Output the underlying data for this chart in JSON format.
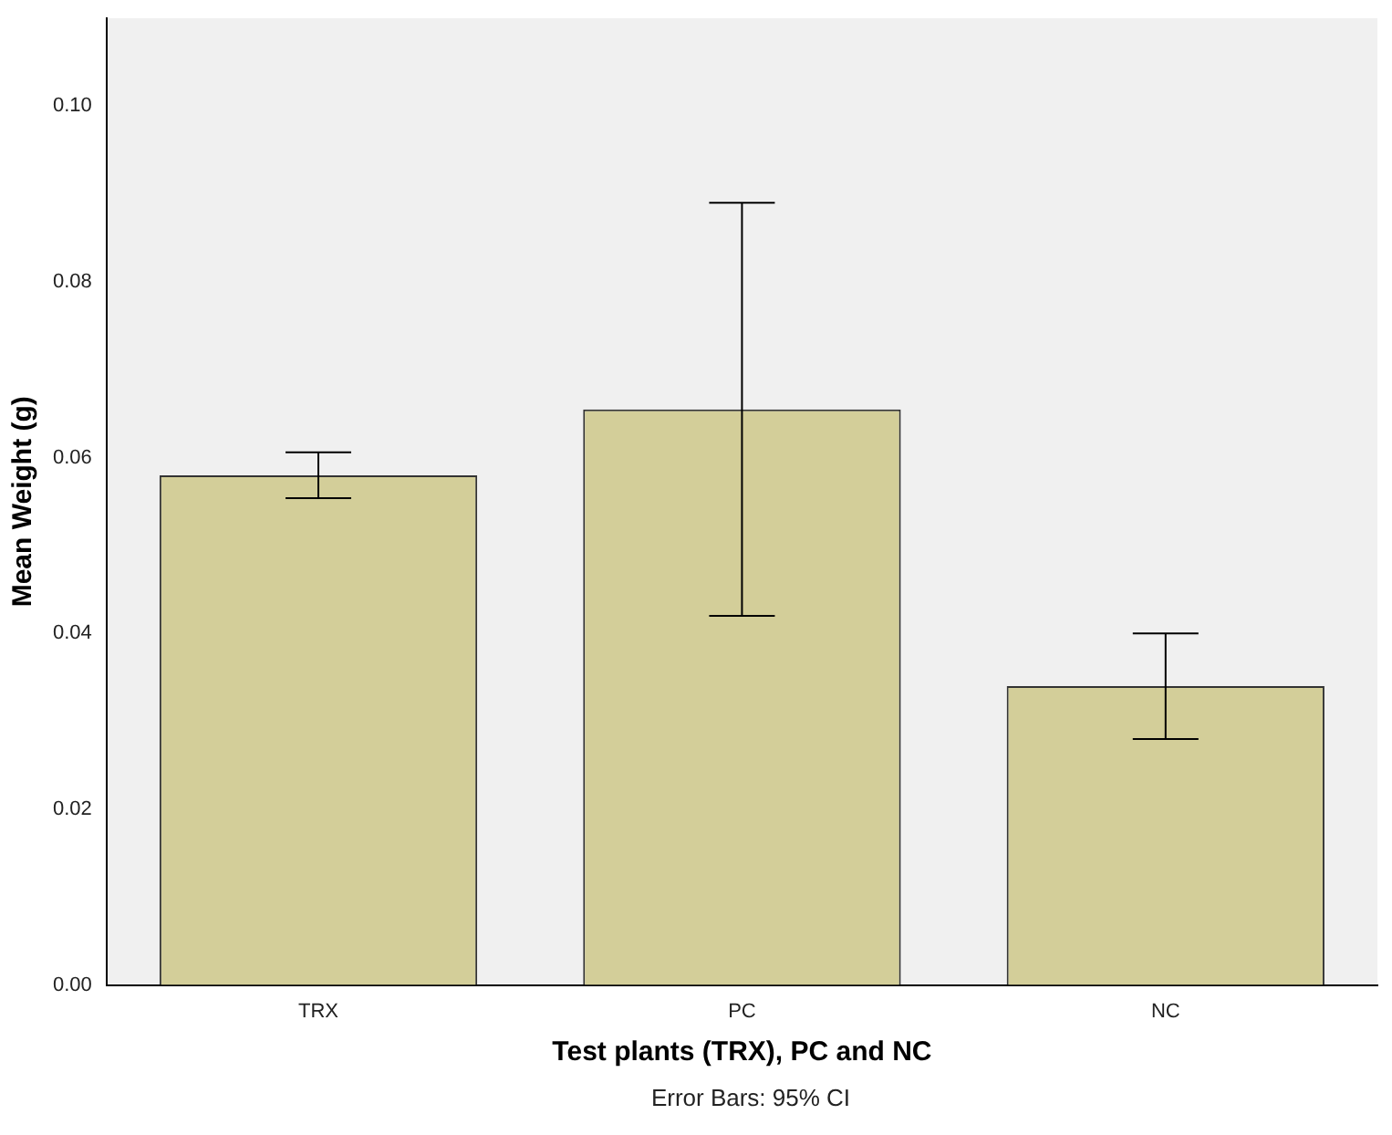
{
  "chart_data": {
    "type": "bar",
    "xlabel": "Test plants (TRX), PC and NC",
    "ylabel": "Mean Weight (g)",
    "categories": [
      "TRX",
      "PC",
      "NC"
    ],
    "values": [
      0.058,
      0.0655,
      0.034
    ],
    "errors": [
      [
        0.0554,
        0.0606
      ],
      [
        0.042,
        0.089
      ],
      [
        0.028,
        0.04
      ]
    ],
    "color": "#d3ce99",
    "ylim": [
      0,
      0.11
    ],
    "yticks": [
      {
        "value": 0,
        "label": "0.00"
      },
      {
        "value": 0.02,
        "label": "0.02"
      },
      {
        "value": 0.04,
        "label": "0.04"
      },
      {
        "value": 0.06,
        "label": "0.06"
      },
      {
        "value": 0.08,
        "label": "0.08"
      },
      {
        "value": 0.1,
        "label": "0.10"
      }
    ],
    "grid": false,
    "legend": false,
    "annotations": [
      "Error Bars: 95% CI"
    ]
  }
}
